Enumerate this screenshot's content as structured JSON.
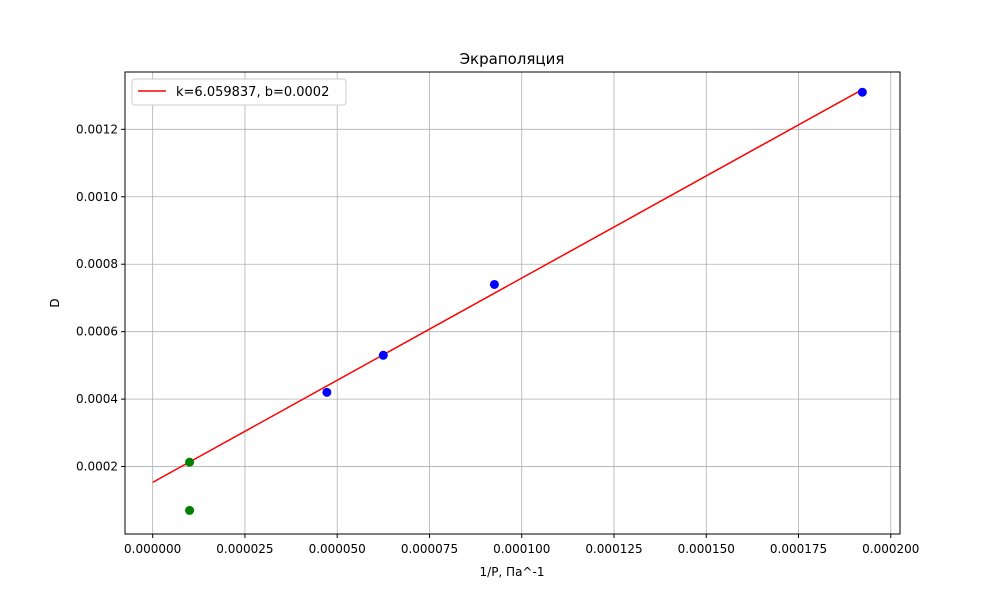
{
  "chart_data": {
    "type": "scatter",
    "title": "Экраполяция",
    "xlabel": "1/P, Па^-1",
    "ylabel": "D",
    "xlim": [
      -7.5e-06,
      0.0002025
    ],
    "ylim": [
      0.0,
      0.00137
    ],
    "grid": true,
    "legend_position": "top-left",
    "xticks": [
      "0.000000",
      "0.000025",
      "0.000050",
      "0.000075",
      "0.000100",
      "0.000125",
      "0.000150",
      "0.000175",
      "0.000200"
    ],
    "xtick_values": [
      0,
      2.5e-05,
      5e-05,
      7.5e-05,
      0.0001,
      0.000125,
      0.00015,
      0.000175,
      0.0002
    ],
    "yticks": [
      "0.0002",
      "0.0004",
      "0.0006",
      "0.0008",
      "0.0010",
      "0.0012"
    ],
    "ytick_values": [
      0.0002,
      0.0004,
      0.0006,
      0.0008,
      0.001,
      0.0012
    ],
    "series": [
      {
        "kind": "line",
        "name": "k=6.059837, b=0.0002",
        "color": "#ff0000",
        "x": [
          0,
          0.0001923
        ],
        "y": [
          0.000153,
          0.001318
        ]
      },
      {
        "kind": "scatter",
        "color": "#0000ff",
        "x": [
          4.72e-05,
          6.25e-05,
          9.26e-05,
          0.0001923
        ],
        "y": [
          0.00042,
          0.00053,
          0.00074,
          0.00131
        ]
      },
      {
        "kind": "scatter",
        "color": "#008000",
        "x": [
          1e-05,
          1e-05
        ],
        "y": [
          0.000213,
          7e-05
        ]
      }
    ]
  }
}
